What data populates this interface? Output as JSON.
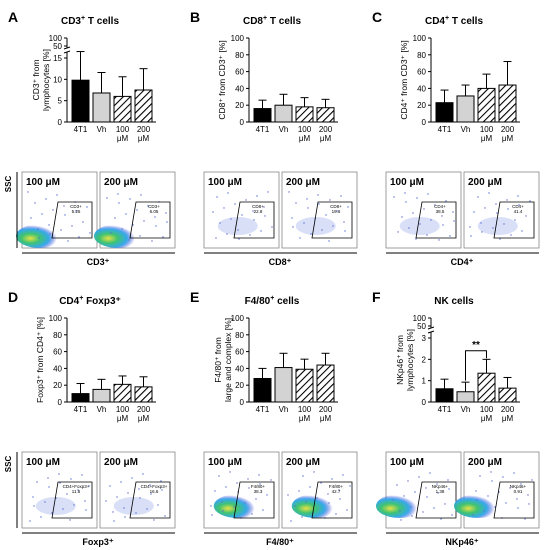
{
  "panels": [
    {
      "letter": "A",
      "title_main": "CD3",
      "title_sup": "+",
      "title_rest": " T cells",
      "ylabel": [
        "CD3⁺ from",
        "lymphocytes [%]"
      ],
      "ticks": [
        0,
        5,
        10,
        15,
        50,
        100
      ],
      "broken_axis": true,
      "flow": {
        "left_label": "100 μM",
        "right_label": "200 μM",
        "left_gate": "CD3+\n5.25",
        "right_gate": "CD3+\n6.05",
        "xlabel": "CD3⁺",
        "ylabel": "SSC"
      }
    },
    {
      "letter": "B",
      "title_main": "CD8",
      "title_sup": "+",
      "title_rest": " T cells",
      "ylabel": [
        "CD8⁺ from CD3⁺ [%]"
      ],
      "ticks": [
        0,
        20,
        40,
        60,
        80,
        100
      ],
      "broken_axis": false,
      "flow": {
        "left_label": "100 μM",
        "right_label": "200 μM",
        "left_gate": "CD8+\n22.8",
        "right_gate": "CD8+\n19.6",
        "xlabel": "CD8⁺",
        "ylabel": ""
      }
    },
    {
      "letter": "C",
      "title_main": "CD4",
      "title_sup": "+",
      "title_rest": " T cells",
      "ylabel": [
        "CD4⁺ from CD3⁺ [%]"
      ],
      "ticks": [
        0,
        20,
        40,
        60,
        80,
        100
      ],
      "broken_axis": false,
      "flow": {
        "left_label": "100 μM",
        "right_label": "200 μM",
        "left_gate": "CD4+\n38.5",
        "right_gate": "CD4+\n41.4",
        "xlabel": "CD4⁺",
        "ylabel": ""
      }
    },
    {
      "letter": "D",
      "title_main": "CD4",
      "title_sup": "+",
      "title_rest": " Foxp3⁺",
      "ylabel": [
        "Foxp3⁺ from CD4⁺ [%]"
      ],
      "ticks": [
        0,
        20,
        40,
        60,
        80,
        100
      ],
      "broken_axis": false,
      "flow": {
        "left_label": "100 μM",
        "right_label": "200 μM",
        "left_gate": "CD4+Foxp3+\n11.6",
        "right_gate": "CD4+Foxp3+\n16.6",
        "xlabel": "Foxp3⁺",
        "ylabel": "SSC"
      }
    },
    {
      "letter": "E",
      "title_main": "F4/80",
      "title_sup": "+",
      "title_rest": " cells",
      "ylabel": [
        "F4/80⁺ from",
        "large and complex [%]"
      ],
      "ticks": [
        0,
        20,
        40,
        60,
        80,
        100
      ],
      "broken_axis": false,
      "flow": {
        "left_label": "100 μM",
        "right_label": "200 μM",
        "left_gate": "F4/80+\n38.3",
        "right_gate": "F4/80+\n42.7",
        "xlabel": "F4/80⁺",
        "ylabel": ""
      }
    },
    {
      "letter": "F",
      "title_main": "NK cells",
      "title_sup": "",
      "title_rest": "",
      "ylabel": [
        "NKp46⁺ from",
        "lymphocytes [%]"
      ],
      "ticks": [
        0,
        1,
        2,
        3,
        50,
        100
      ],
      "broken_axis": true,
      "significance": "**",
      "flow": {
        "left_label": "100 μM",
        "right_label": "200 μM",
        "left_gate": "NKp46+\n1.38",
        "right_gate": "NKp46+\n0.91",
        "xlabel": "NKp46⁺",
        "ylabel": ""
      }
    }
  ],
  "chart_data": [
    {
      "type": "bar",
      "panel": "A",
      "categories": [
        "4T1",
        "Vh",
        "100 μM",
        "200 μM"
      ],
      "values": [
        9.8,
        6.8,
        6.0,
        7.5
      ],
      "errors": [
        5.5,
        4.8,
        4.6,
        5.0
      ],
      "ylim_lower": [
        0,
        15
      ],
      "ylim_upper": [
        50,
        100
      ]
    },
    {
      "type": "bar",
      "panel": "B",
      "categories": [
        "4T1",
        "Vh",
        "100 μM",
        "200 μM"
      ],
      "values": [
        16,
        20,
        18,
        17
      ],
      "errors": [
        10,
        13,
        11,
        10
      ],
      "ylim": [
        0,
        100
      ]
    },
    {
      "type": "bar",
      "panel": "C",
      "categories": [
        "4T1",
        "Vh",
        "100 μM",
        "200 μM"
      ],
      "values": [
        23,
        31,
        40,
        44
      ],
      "errors": [
        15,
        13,
        17,
        28
      ],
      "ylim": [
        0,
        100
      ]
    },
    {
      "type": "bar",
      "panel": "D",
      "categories": [
        "4T1",
        "Vh",
        "100 μM",
        "200 μM"
      ],
      "values": [
        10,
        15,
        21,
        18
      ],
      "errors": [
        12,
        12,
        10,
        12
      ],
      "ylim": [
        0,
        100
      ]
    },
    {
      "type": "bar",
      "panel": "E",
      "categories": [
        "4T1",
        "Vh",
        "100 μM",
        "200 μM"
      ],
      "values": [
        28,
        41,
        39,
        44
      ],
      "errors": [
        12,
        17,
        12,
        14
      ],
      "ylim": [
        0,
        100
      ]
    },
    {
      "type": "bar",
      "panel": "F",
      "categories": [
        "4T1",
        "Vh",
        "100 μM",
        "200 μM"
      ],
      "values": [
        0.62,
        0.48,
        1.35,
        0.65
      ],
      "errors": [
        0.45,
        0.45,
        0.65,
        0.5
      ],
      "ylim_lower": [
        0,
        3
      ],
      "ylim_upper": [
        50,
        100
      ]
    }
  ],
  "colors": {
    "bar_fills": [
      "#000000",
      "#d3d3d3",
      "hatch",
      "hatch"
    ],
    "flow_density": [
      "#2b2bd6",
      "#2aa5e8",
      "#35c06a",
      "#e8e03c"
    ]
  }
}
